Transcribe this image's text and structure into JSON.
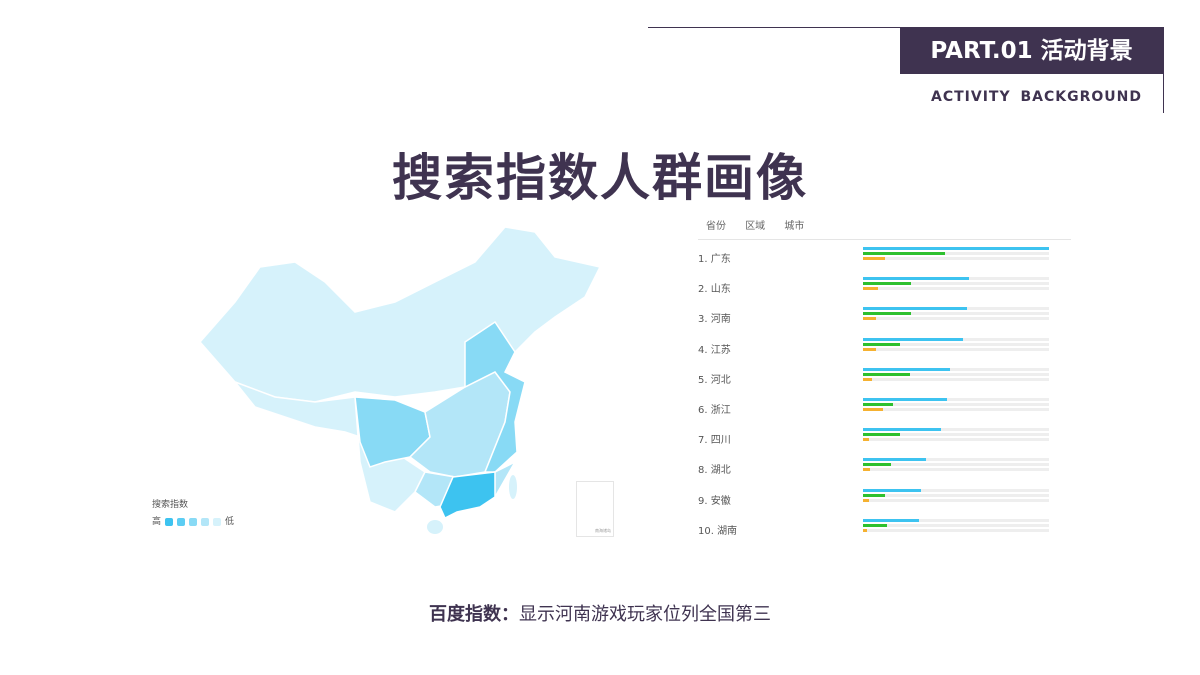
{
  "header": {
    "part": "PART.01 活动背景",
    "subtitle": "ACTIVITY BACKGROUND"
  },
  "title": "搜索指数人群画像",
  "tabs": [
    "省份",
    "区域",
    "城市"
  ],
  "colors": {
    "blue": "#3dc3f0",
    "green": "#2ec02e",
    "orange": "#f5b130",
    "brand": "#3f3350"
  },
  "ranking": [
    {
      "label": "1.  广东",
      "blue": 1.0,
      "green": 0.44,
      "orange": 0.12
    },
    {
      "label": "2.  山东",
      "blue": 0.57,
      "green": 0.26,
      "orange": 0.08
    },
    {
      "label": "3.  河南",
      "blue": 0.56,
      "green": 0.26,
      "orange": 0.07
    },
    {
      "label": "4.  江苏",
      "blue": 0.54,
      "green": 0.2,
      "orange": 0.07
    },
    {
      "label": "5.  河北",
      "blue": 0.47,
      "green": 0.25,
      "orange": 0.05
    },
    {
      "label": "6.  浙江",
      "blue": 0.45,
      "green": 0.16,
      "orange": 0.11
    },
    {
      "label": "7.  四川",
      "blue": 0.42,
      "green": 0.2,
      "orange": 0.03
    },
    {
      "label": "8.  湖北",
      "blue": 0.34,
      "green": 0.15,
      "orange": 0.04
    },
    {
      "label": "9.  安徽",
      "blue": 0.31,
      "green": 0.12,
      "orange": 0.03
    },
    {
      "label": "10. 湖南",
      "blue": 0.3,
      "green": 0.13,
      "orange": 0.02
    }
  ],
  "legend": {
    "title": "搜索指数",
    "high": "高",
    "low": "低",
    "scale": [
      "#3dc3f0",
      "#5ccdf3",
      "#88daf5",
      "#b3e6f8",
      "#d6f2fb"
    ]
  },
  "inset_label": "南海诸岛",
  "caption": {
    "bold": "百度指数：",
    "text": "显示河南游戏玩家位列全国第三"
  }
}
